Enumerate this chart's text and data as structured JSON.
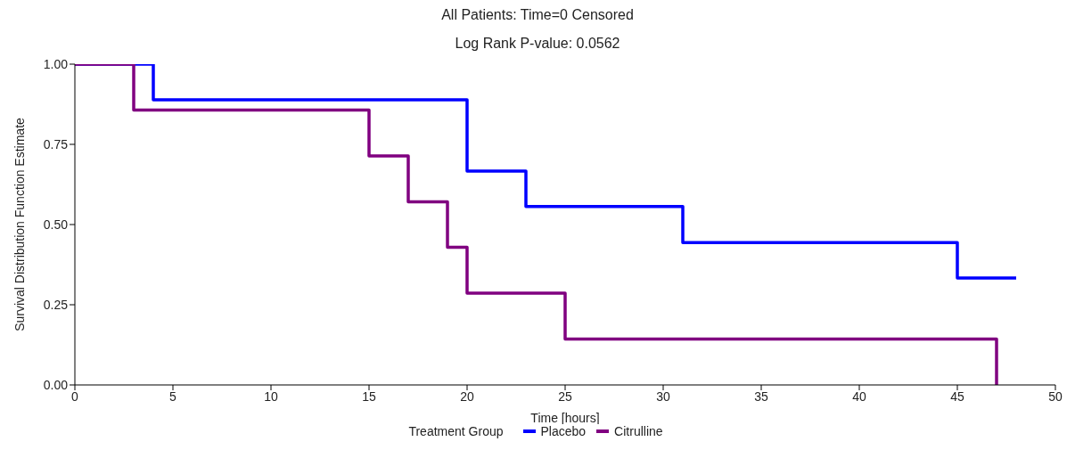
{
  "chart_data": {
    "type": "step",
    "title": "All Patients: Time=0 Censored",
    "subtitle": "Log Rank P-value: 0.0562",
    "xlabel": "Time [hours]",
    "ylabel": "Survival Distribution Function Estimate",
    "legend_title": "Treatment Group",
    "legend": "bottom",
    "grid": false,
    "marker": "none",
    "line_style": "solid",
    "xlim": [
      0,
      50
    ],
    "xticks": [
      0,
      5,
      10,
      15,
      20,
      25,
      30,
      35,
      40,
      45,
      50
    ],
    "ylim": [
      0,
      1
    ],
    "yticks": [
      {
        "value": 0,
        "label": "0.00"
      },
      {
        "value": 0.25,
        "label": "0.25"
      },
      {
        "value": 0.5,
        "label": "0.50"
      },
      {
        "value": 0.75,
        "label": "0.75"
      },
      {
        "value": 1,
        "label": "1.00"
      }
    ],
    "series": [
      {
        "name": "Placebo",
        "color": "#0000ff",
        "x": [
          0,
          4,
          20,
          23,
          31,
          45,
          48
        ],
        "values": [
          1,
          0.889,
          0.667,
          0.556,
          0.444,
          0.333,
          0.333
        ]
      },
      {
        "name": "Citrulline",
        "color": "#800080",
        "x": [
          0,
          3,
          15,
          17,
          19,
          20,
          25,
          47
        ],
        "values": [
          1,
          0.857,
          0.714,
          0.571,
          0.429,
          0.286,
          0.143,
          0
        ]
      }
    ]
  }
}
